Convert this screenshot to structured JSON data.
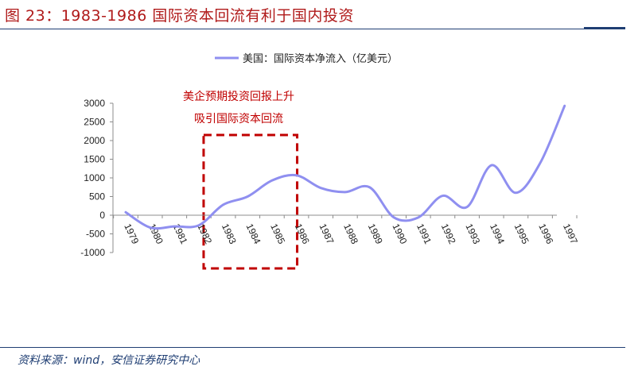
{
  "header": {
    "title": "图 23：1983-1986 国际资本回流有利于国内投资"
  },
  "footer": {
    "source": "资料来源：wind，安信证券研究中心"
  },
  "annotation": {
    "line1": "美企预期投资回报上升",
    "line2": "吸引国际资本回流"
  },
  "colors": {
    "title": "#b01a1a",
    "rule": "#1f3e73",
    "series": "#8f8ff0",
    "annotation": "#c00000",
    "axis": "#8c8c8c"
  },
  "chart_data": {
    "type": "line",
    "x": [
      1979,
      1980,
      1981,
      1982,
      1983,
      1984,
      1985,
      1986,
      1987,
      1988,
      1989,
      1990,
      1991,
      1992,
      1993,
      1994,
      1995,
      1996,
      1997
    ],
    "xlabels": [
      "1979",
      "1980",
      "1981",
      "1982",
      "1983",
      "1984",
      "1985",
      "1986",
      "1987",
      "1988",
      "1989",
      "1990",
      "1991",
      "1992",
      "1993",
      "1994",
      "1995",
      "1996",
      "1997"
    ],
    "series": [
      {
        "name": "美国：国际资本净流入（亿美元）",
        "values": [
          80,
          -330,
          -300,
          -270,
          280,
          500,
          930,
          1070,
          730,
          620,
          750,
          -60,
          -60,
          520,
          220,
          1340,
          600,
          1400,
          2930
        ]
      }
    ],
    "ylim": [
      -1000,
      3000
    ],
    "yticks": [
      -1000,
      -500,
      0,
      500,
      1000,
      1500,
      2000,
      2500,
      3000
    ],
    "ytick_labels": [
      "-1000",
      "-500",
      "0",
      "500",
      "1000",
      "1500",
      "2000",
      "2500",
      "3000"
    ],
    "legend_position": "top-center",
    "grid": false,
    "highlight": {
      "from": 1982,
      "to": 1986
    }
  }
}
